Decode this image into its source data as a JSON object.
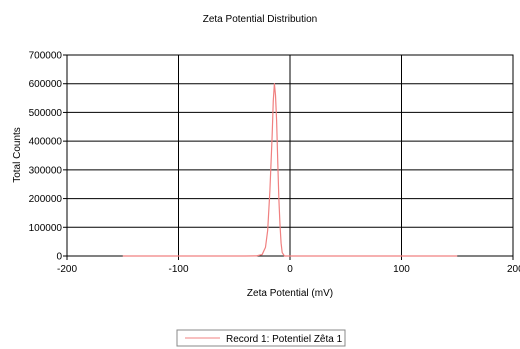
{
  "chart_data": {
    "type": "line",
    "title": "Zeta Potential Distribution",
    "xlabel": "Zeta Potential (mV)",
    "ylabel": "Total Counts",
    "xlim": [
      -200,
      200
    ],
    "ylim": [
      0,
      700000
    ],
    "x_ticks": [
      -200,
      -100,
      0,
      100,
      200
    ],
    "y_ticks": [
      0,
      100000,
      200000,
      300000,
      400000,
      500000,
      600000,
      700000
    ],
    "x_tick_labels": [
      "-200",
      "-100",
      "0",
      "100",
      "200"
    ],
    "y_tick_labels": [
      "0",
      "100000",
      "200000",
      "300000",
      "400000",
      "500000",
      "600000",
      "700000"
    ],
    "grid": true,
    "legend_position": "bottom-center",
    "colors": {
      "series": "#f08080",
      "grid": "#000000",
      "background": "#ffffff"
    },
    "series": [
      {
        "name": "Record 1: Potentiel Zêta 1",
        "x": [
          -150,
          -80,
          -40,
          -30,
          -25,
          -22,
          -20,
          -18,
          -16,
          -15,
          -14,
          -13,
          -12,
          -11,
          -10,
          -9,
          -8,
          -7,
          -5,
          10,
          80,
          150
        ],
        "y": [
          0,
          0,
          0,
          500,
          5000,
          30000,
          90000,
          230000,
          420000,
          540000,
          600000,
          560000,
          470000,
          330000,
          200000,
          110000,
          45000,
          12000,
          0,
          0,
          0,
          0
        ]
      }
    ]
  }
}
